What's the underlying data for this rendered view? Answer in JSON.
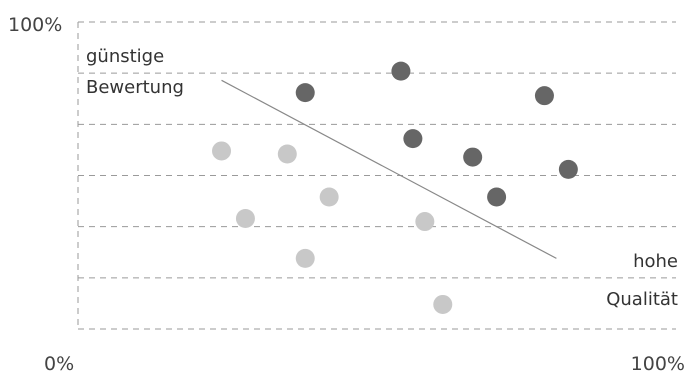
{
  "chart_data": {
    "type": "scatter",
    "title": "",
    "xlabel": "",
    "ylabel": "",
    "xlim": [
      0,
      100
    ],
    "ylim": [
      0,
      100
    ],
    "x_tick_labels": [
      "0%",
      "100%"
    ],
    "y_tick_labels": [
      "100%"
    ],
    "grid": "horizontal-dashed",
    "annotations": {
      "top_left": [
        "günstige",
        "Bewertung"
      ],
      "bottom_right": [
        "hohe",
        "Qualität"
      ]
    },
    "trend_line": {
      "from": [
        24,
        81
      ],
      "to": [
        80,
        23
      ]
    },
    "series": [
      {
        "color": "#666666",
        "points": [
          {
            "x": 38,
            "y": 77
          },
          {
            "x": 54,
            "y": 84
          },
          {
            "x": 56,
            "y": 62
          },
          {
            "x": 66,
            "y": 56
          },
          {
            "x": 70,
            "y": 43
          },
          {
            "x": 78,
            "y": 76
          },
          {
            "x": 82,
            "y": 52
          }
        ]
      },
      {
        "color": "#c8c8c8",
        "points": [
          {
            "x": 24,
            "y": 58
          },
          {
            "x": 28,
            "y": 36
          },
          {
            "x": 35,
            "y": 57
          },
          {
            "x": 38,
            "y": 23
          },
          {
            "x": 42,
            "y": 43
          },
          {
            "x": 58,
            "y": 35
          },
          {
            "x": 61,
            "y": 8
          }
        ]
      }
    ]
  }
}
